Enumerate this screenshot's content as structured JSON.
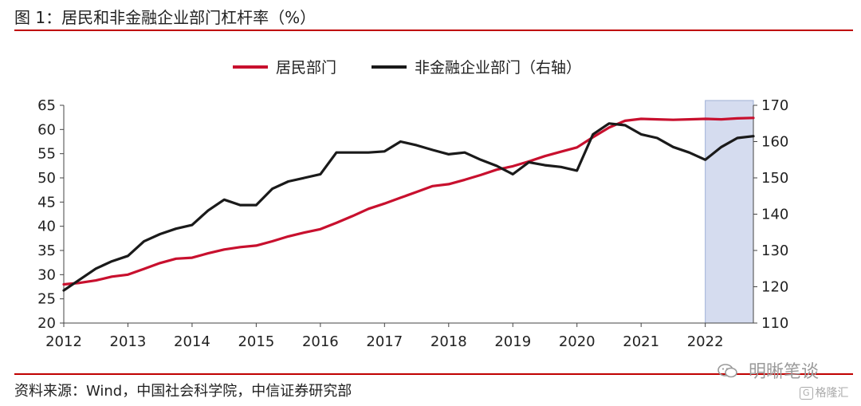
{
  "header": {
    "title": "图 1：居民和非金融企业部门杠杆率（%）"
  },
  "footer": {
    "source": "资料来源：Wind，中国社会科学院，中信证券研究部",
    "watermark": "明晰笔谈",
    "logo_text": "格隆汇",
    "logo_mark": "G"
  },
  "colors": {
    "household": "#c8102e",
    "corporate": "#1a1a1a",
    "shade": "#d5dcef",
    "rule": "#c00000"
  },
  "chart_data": {
    "type": "line",
    "title": "图 1：居民和非金融企业部门杠杆率（%）",
    "legend_position": "top-center",
    "grid": false,
    "x_axis": {
      "ticks": [
        "2012",
        "2013",
        "2014",
        "2015",
        "2016",
        "2017",
        "2018",
        "2019",
        "2020",
        "2021",
        "2022"
      ],
      "range": [
        2012,
        2022.75
      ]
    },
    "y_left": {
      "range": [
        20,
        65
      ],
      "ticks": [
        "20",
        "25",
        "30",
        "35",
        "40",
        "45",
        "50",
        "55",
        "60",
        "65"
      ]
    },
    "y_right": {
      "range": [
        110,
        170
      ],
      "ticks": [
        "110",
        "120",
        "130",
        "140",
        "150",
        "160",
        "170"
      ]
    },
    "shaded_region": {
      "x": [
        2022.0,
        2022.75
      ]
    },
    "series": [
      {
        "name": "居民部门",
        "axis": "left",
        "color": "#c8102e",
        "x": [
          2012.0,
          2012.25,
          2012.5,
          2012.75,
          2013.0,
          2013.25,
          2013.5,
          2013.75,
          2014.0,
          2014.25,
          2014.5,
          2014.75,
          2015.0,
          2015.25,
          2015.5,
          2015.75,
          2016.0,
          2016.25,
          2016.5,
          2016.75,
          2017.0,
          2017.25,
          2017.5,
          2017.75,
          2018.0,
          2018.25,
          2018.5,
          2018.75,
          2019.0,
          2019.25,
          2019.5,
          2019.75,
          2020.0,
          2020.25,
          2020.5,
          2020.75,
          2021.0,
          2021.25,
          2021.5,
          2021.75,
          2022.0,
          2022.25,
          2022.5,
          2022.75
        ],
        "values": [
          28.0,
          28.3,
          28.8,
          29.6,
          30.0,
          31.2,
          32.4,
          33.3,
          33.5,
          34.4,
          35.2,
          35.7,
          36.0,
          36.9,
          37.9,
          38.7,
          39.4,
          40.7,
          42.1,
          43.6,
          44.7,
          45.9,
          47.1,
          48.3,
          48.7,
          49.6,
          50.6,
          51.7,
          52.4,
          53.4,
          54.5,
          55.4,
          56.3,
          58.4,
          60.4,
          61.8,
          62.2,
          62.1,
          62.0,
          62.1,
          62.2,
          62.1,
          62.3,
          62.4
        ]
      },
      {
        "name": "非金融企业部门（右轴）",
        "axis": "right",
        "color": "#1a1a1a",
        "x": [
          2012.0,
          2012.25,
          2012.5,
          2012.75,
          2013.0,
          2013.25,
          2013.5,
          2013.75,
          2014.0,
          2014.25,
          2014.5,
          2014.75,
          2015.0,
          2015.25,
          2015.5,
          2015.75,
          2016.0,
          2016.25,
          2016.5,
          2016.75,
          2017.0,
          2017.25,
          2017.5,
          2017.75,
          2018.0,
          2018.25,
          2018.5,
          2018.75,
          2019.0,
          2019.25,
          2019.5,
          2019.75,
          2020.0,
          2020.25,
          2020.5,
          2020.75,
          2021.0,
          2021.25,
          2021.5,
          2021.75,
          2022.0,
          2022.25,
          2022.5,
          2022.75
        ],
        "values": [
          119.0,
          122.0,
          125.0,
          127.0,
          128.5,
          132.5,
          134.5,
          136.0,
          137.0,
          141.0,
          144.0,
          142.5,
          142.5,
          147.0,
          149.0,
          150.0,
          151.0,
          157.0,
          157.0,
          157.0,
          157.3,
          160.0,
          159.0,
          157.7,
          156.5,
          157.0,
          155.0,
          153.3,
          151.0,
          154.3,
          153.5,
          153.0,
          152.0,
          162.0,
          165.0,
          164.5,
          162.0,
          161.0,
          158.5,
          157.0,
          155.0,
          158.5,
          161.0,
          161.5
        ]
      }
    ]
  }
}
